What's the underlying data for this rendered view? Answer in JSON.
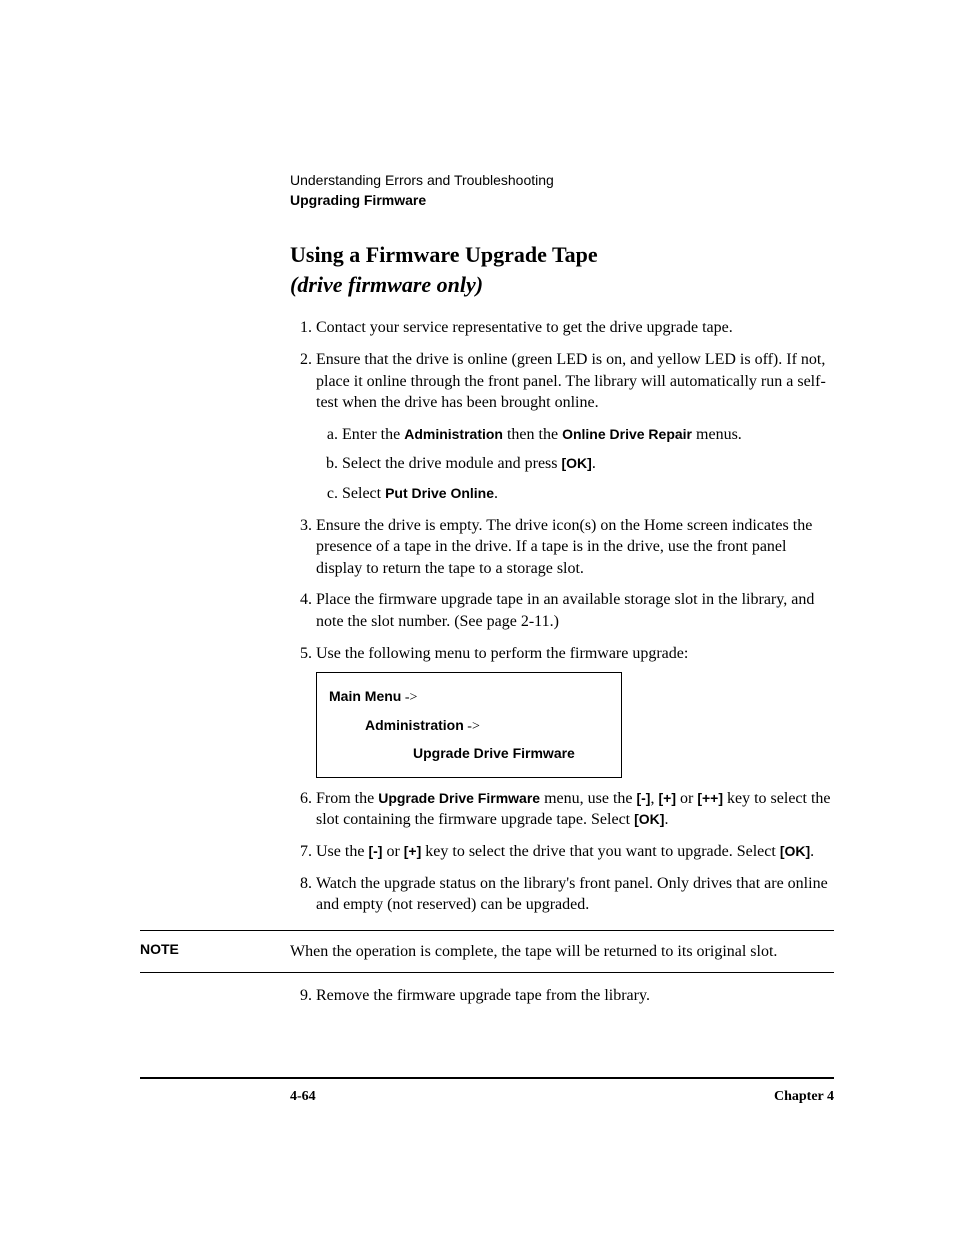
{
  "header": {
    "chapter_title": "Understanding Errors and Troubleshooting",
    "section_title": "Upgrading Firmware"
  },
  "heading": {
    "line1": "Using a Firmware Upgrade Tape",
    "line2": "(drive firmware only)"
  },
  "steps": {
    "s1": "Contact your service representative to get the drive upgrade tape.",
    "s2": "Ensure that the drive is online (green LED is on, and yellow LED is off). If not, place it online through the front panel. The library will automatically run a self-test when the drive has been brought online.",
    "s2a_pre": "Enter the ",
    "s2a_admin": "Administration",
    "s2a_mid": " then the ",
    "s2a_odr": "Online Drive Repair",
    "s2a_post": " menus.",
    "s2b_pre": "Select the drive module and press ",
    "s2b_ok": "[OK]",
    "s2b_post": ".",
    "s2c_pre": "Select ",
    "s2c_put": "Put Drive Online",
    "s2c_post": ".",
    "s3": "Ensure the drive is empty. The drive icon(s) on the Home screen indicates the presence of a tape in the drive. If a tape is in the drive, use the front panel display to return the tape to a storage slot.",
    "s4": "Place the firmware upgrade tape in an available storage slot in the library, and note the slot number. (See page 2-11.)",
    "s5": "Use the following menu to perform the firmware upgrade:",
    "s6_pre": "From the ",
    "s6_menu": "Upgrade Drive Firmware",
    "s6_mid1": " menu, use the ",
    "s6_minus": "[-]",
    "s6_comma": ", ",
    "s6_plus": "[+]",
    "s6_or": " or ",
    "s6_plusplus": "[++]",
    "s6_mid2": " key to select the slot containing the firmware upgrade tape. Select ",
    "s6_ok": "[OK]",
    "s6_post": ".",
    "s7_pre": "Use the ",
    "s7_minus": "[-]",
    "s7_or": " or ",
    "s7_plus": "[+]",
    "s7_mid": " key to select the drive that you want to upgrade. Select ",
    "s7_ok": "[OK]",
    "s7_post": ".",
    "s8": "Watch the upgrade status on the library's front panel. Only drives that are online and empty (not reserved) can be upgraded.",
    "s9": "Remove the firmware upgrade tape from the library."
  },
  "menubox": {
    "l1": "Main Menu",
    "arrow": " ->",
    "l2": "Administration",
    "l3": "Upgrade Drive Firmware"
  },
  "note": {
    "label": "NOTE",
    "text": "When the operation is complete, the tape will be returned to its original slot."
  },
  "footer": {
    "page": "4-64",
    "chapter": "Chapter 4"
  }
}
